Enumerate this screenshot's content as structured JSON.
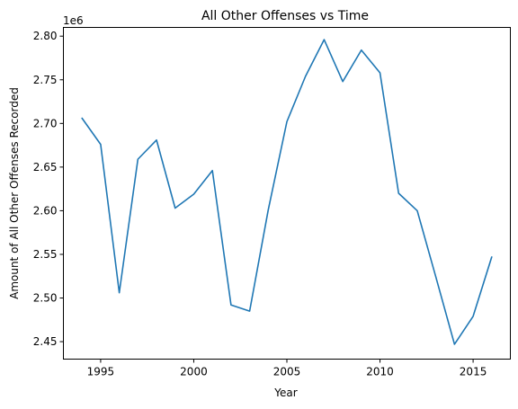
{
  "chart_data": {
    "type": "line",
    "title": "All Other Offenses vs Time",
    "xlabel": "Year",
    "ylabel": "Amount of All Other Offenses Recorded",
    "y_offset_label": "1e6",
    "xlim": [
      1993,
      2017
    ],
    "ylim": [
      2.43,
      2.81
    ],
    "x_ticks": [
      1995,
      2000,
      2005,
      2010,
      2015
    ],
    "y_ticks": [
      2.45,
      2.5,
      2.55,
      2.6,
      2.65,
      2.7,
      2.75,
      2.8
    ],
    "y_tick_labels": [
      "2.45",
      "2.50",
      "2.55",
      "2.60",
      "2.65",
      "2.70",
      "2.75",
      "2.80"
    ],
    "grid": false,
    "line_color": "#1f77b4",
    "x": [
      1994,
      1995,
      1996,
      1997,
      1998,
      1999,
      2000,
      2001,
      2002,
      2003,
      2004,
      2005,
      2006,
      2007,
      2008,
      2009,
      2010,
      2011,
      2012,
      2013,
      2014,
      2015,
      2016
    ],
    "values": [
      2.706,
      2.676,
      2.506,
      2.659,
      2.681,
      2.603,
      2.619,
      2.646,
      2.492,
      2.485,
      2.601,
      2.702,
      2.754,
      2.796,
      2.748,
      2.784,
      2.758,
      2.62,
      2.6,
      2.524,
      2.447,
      2.479,
      2.547
    ]
  }
}
